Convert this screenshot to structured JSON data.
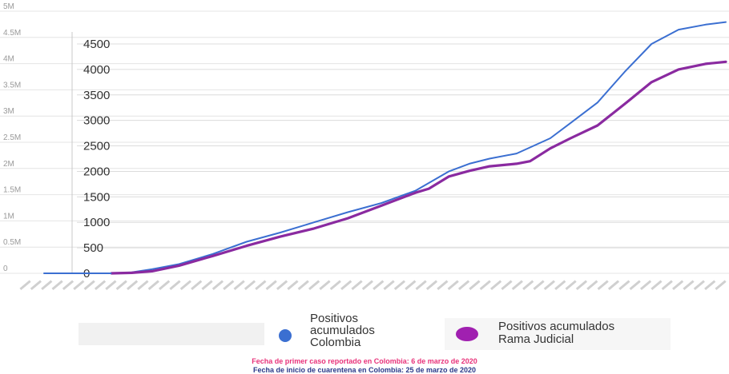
{
  "chart_data": {
    "type": "line",
    "left_axis": {
      "ticks": [
        "0",
        "0.5M",
        "1M",
        "1.5M",
        "2M",
        "2.5M",
        "3M",
        "3.5M",
        "4M",
        "4.5M",
        "5M"
      ]
    },
    "right_axis": {
      "ylim": [
        0,
        4500
      ],
      "ticks": [
        0,
        500,
        1000,
        1500,
        2000,
        2500,
        3000,
        3500,
        4000,
        4500
      ]
    },
    "x_tick_count": 66,
    "grid": true,
    "legend_position": "bottom",
    "series": [
      {
        "name": "Positivos acumulados Colombia",
        "color": "#3b6fd1",
        "x": [
          0,
          6,
          10,
          13,
          16,
          20,
          25,
          30,
          35,
          40,
          45,
          50,
          55,
          60,
          63,
          66,
          70,
          75,
          78,
          82,
          86,
          90,
          94,
          98,
          101
        ],
        "y": [
          0,
          0,
          0,
          20,
          80,
          180,
          380,
          620,
          800,
          1000,
          1200,
          1380,
          1620,
          2000,
          2150,
          2250,
          2350,
          2650,
          2950,
          3350,
          3950,
          4500,
          4780,
          4880,
          4930
        ]
      },
      {
        "name": "Positivos acumulados Rama Judicial",
        "color": "#8a2aa0",
        "x": [
          10,
          13,
          16,
          20,
          25,
          30,
          35,
          40,
          45,
          50,
          55,
          57,
          60,
          63,
          66,
          70,
          72,
          75,
          78,
          82,
          86,
          90,
          94,
          98,
          101
        ],
        "y": [
          0,
          10,
          40,
          150,
          340,
          540,
          720,
          880,
          1080,
          1330,
          1580,
          1660,
          1900,
          2010,
          2100,
          2150,
          2200,
          2450,
          2650,
          2900,
          3320,
          3750,
          4000,
          4110,
          4150
        ]
      }
    ]
  },
  "legend": {
    "colombia_label": "Positivos\nacumulados\nColombia",
    "rama_label": "Positivos acumulados\nRama Judicial"
  },
  "notes": {
    "first_case": "Fecha de primer caso reportado en Colombia: 6 de marzo de 2020",
    "first_case_color": "#e8327a",
    "quarantine": "Fecha de inicio de cuarentena en Colombia: 25 de marzo de 2020",
    "quarantine_color": "#2b3a8a"
  }
}
